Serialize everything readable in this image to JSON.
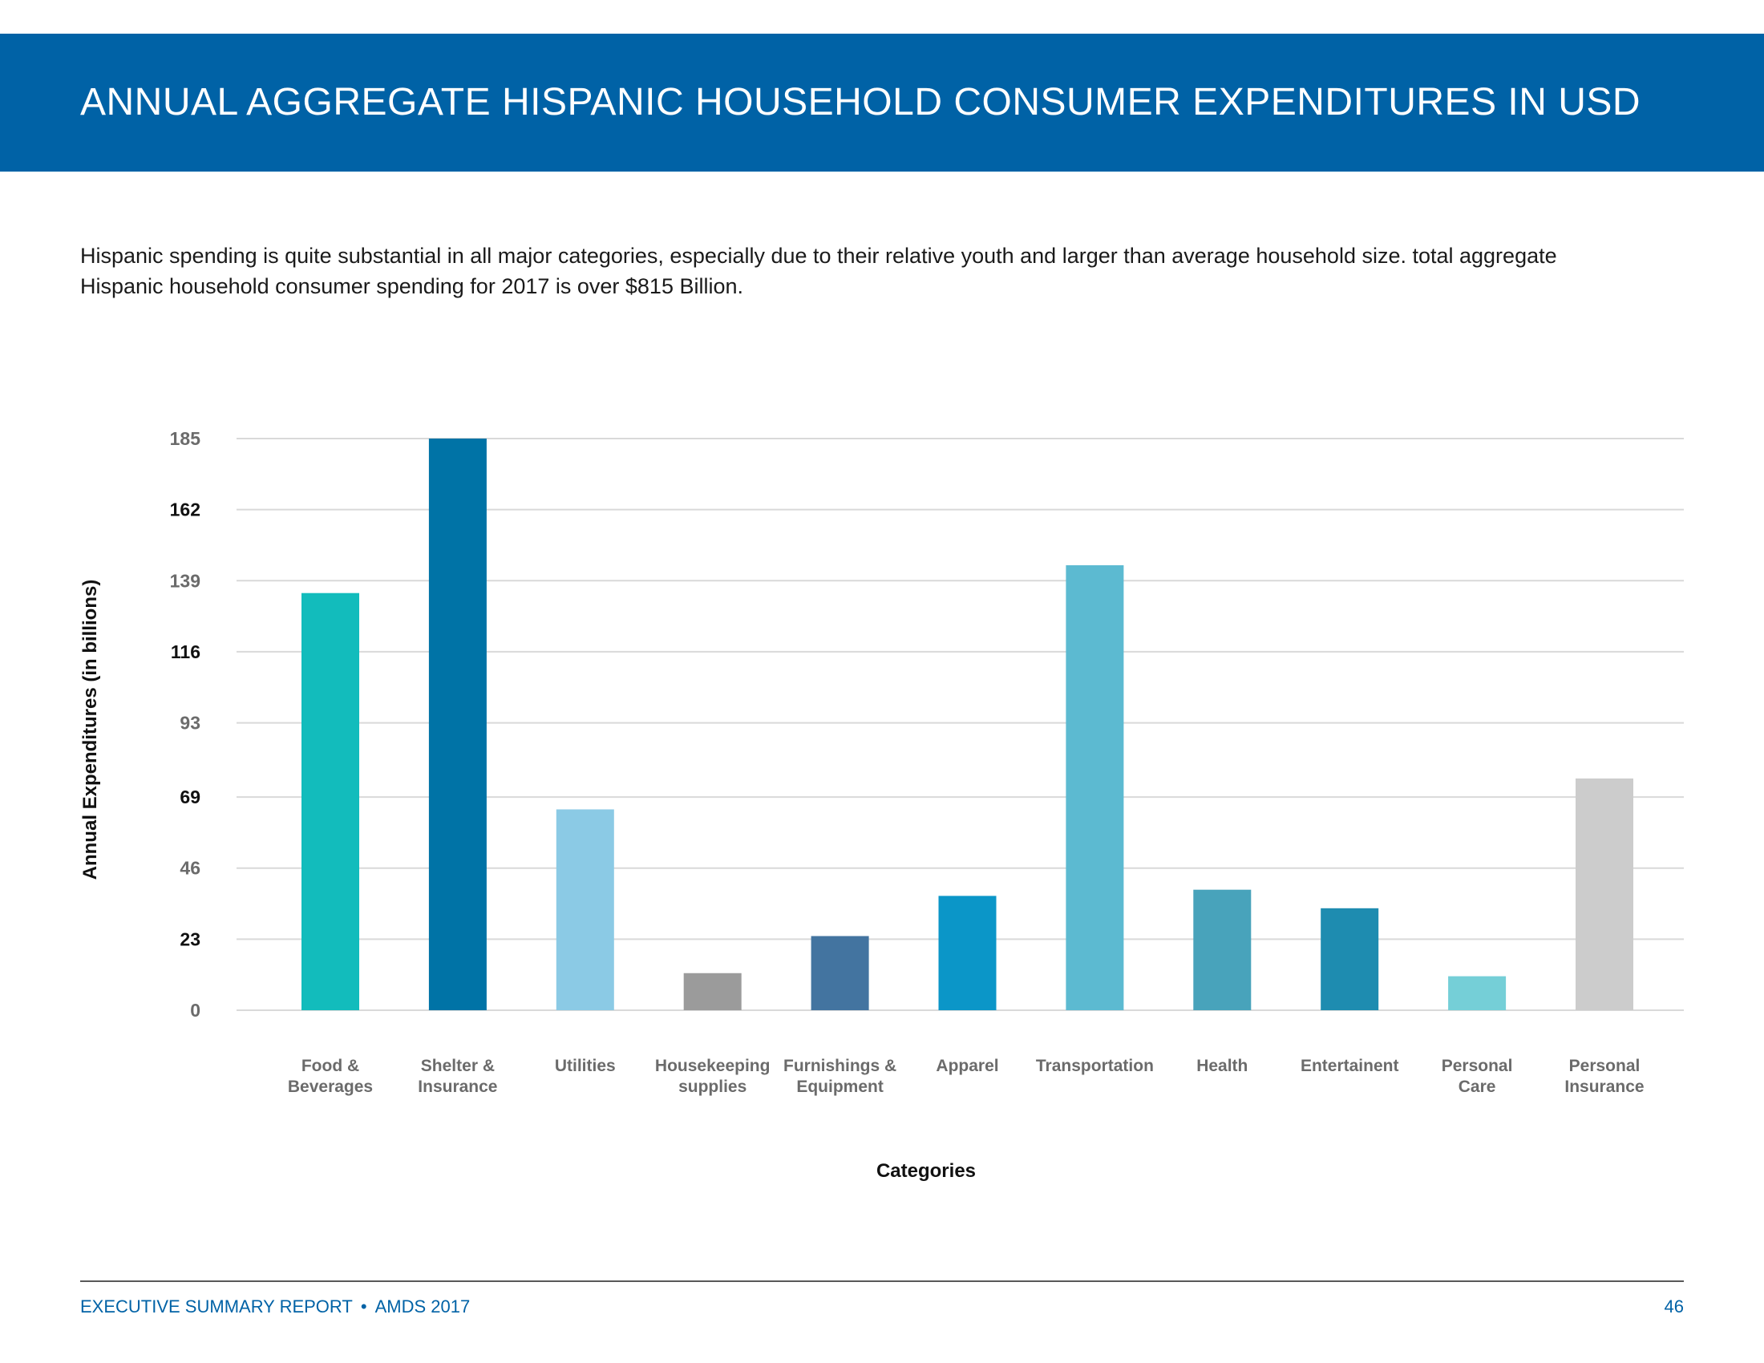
{
  "header": {
    "title": "ANNUAL AGGREGATE HISPANIC HOUSEHOLD CONSUMER EXPENDITURES IN USD",
    "background_color": "#0062a6"
  },
  "intro": {
    "line1": "Hispanic spending is quite substantial in all major categories, especially due to their relative youth and larger than average household size. total aggregate",
    "line2": "Hispanic household consumer spending for 2017 is over $815 Billion."
  },
  "chart_data": {
    "type": "bar",
    "title": "",
    "xlabel": "Categories",
    "ylabel": "Annual Expenditures (in billions)",
    "ylim": [
      0,
      185
    ],
    "yticks": [
      0,
      23,
      46,
      69,
      93,
      116,
      139,
      162,
      185
    ],
    "ytick_labels": [
      "0",
      "23",
      "46",
      "69",
      "93",
      "116",
      "139",
      "162",
      "185"
    ],
    "grid": true,
    "categories": [
      [
        "Food &",
        "Beverages"
      ],
      [
        "Shelter &",
        "Insurance"
      ],
      [
        "Utilities"
      ],
      [
        "Housekeeping",
        "supplies"
      ],
      [
        "Furnishings &",
        "Equipment"
      ],
      [
        "Apparel"
      ],
      [
        "Transportation"
      ],
      [
        "Health"
      ],
      [
        "Entertainent"
      ],
      [
        "Personal",
        "Care"
      ],
      [
        "Personal",
        "Insurance"
      ]
    ],
    "values": [
      135,
      185,
      65,
      12,
      24,
      37,
      144,
      39,
      33,
      11,
      75
    ],
    "colors": [
      "#12bcbc",
      "#0073a6",
      "#8bcae5",
      "#9b9b9b",
      "#4374a0",
      "#0b96c8",
      "#5cbad1",
      "#48a3bb",
      "#1e8cb0",
      "#75cfd7",
      "#cccccc"
    ]
  },
  "footer": {
    "report": "EXECUTIVE SUMMARY REPORT",
    "separator": "•",
    "edition": "AMDS 2017",
    "page_number": "46",
    "text_color": "#0062a6"
  }
}
